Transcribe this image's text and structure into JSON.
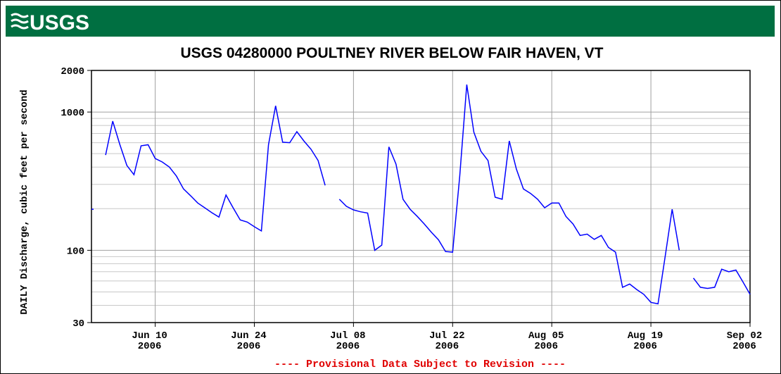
{
  "header": {
    "logo": "USGS"
  },
  "chart_data": {
    "type": "line",
    "title": "USGS 04280000 POULTNEY RIVER BELOW FAIR HAVEN, VT",
    "y_label": "DAILY Discharge, cubic feet per second",
    "footnote": "---- Provisional Data Subject to Revision ----",
    "log_y": true,
    "grid": true,
    "xlim": [
      "2006-06-01",
      "2006-09-02"
    ],
    "ylim": [
      30,
      2000
    ],
    "yticks": [
      30,
      100,
      1000,
      2000
    ],
    "yminor": [
      40,
      50,
      60,
      70,
      80,
      90,
      200,
      300,
      400,
      500,
      600,
      700,
      800,
      900
    ],
    "xticks": [
      {
        "value": "2006-06-10",
        "label": [
          "Jun 10",
          "2006"
        ]
      },
      {
        "value": "2006-06-24",
        "label": [
          "Jun 24",
          "2006"
        ]
      },
      {
        "value": "2006-07-08",
        "label": [
          "Jul 08",
          "2006"
        ]
      },
      {
        "value": "2006-07-22",
        "label": [
          "Jul 22",
          "2006"
        ]
      },
      {
        "value": "2006-08-05",
        "label": [
          "Aug 05",
          "2006"
        ]
      },
      {
        "value": "2006-08-19",
        "label": [
          "Aug 19",
          "2006"
        ]
      },
      {
        "value": "2006-09-02",
        "label": [
          "Sep 02",
          "2006"
        ]
      }
    ],
    "x": [
      "2006-06-01",
      "2006-06-02",
      "2006-06-03",
      "2006-06-04",
      "2006-06-05",
      "2006-06-06",
      "2006-06-07",
      "2006-06-08",
      "2006-06-09",
      "2006-06-10",
      "2006-06-11",
      "2006-06-12",
      "2006-06-13",
      "2006-06-14",
      "2006-06-15",
      "2006-06-16",
      "2006-06-17",
      "2006-06-18",
      "2006-06-19",
      "2006-06-20",
      "2006-06-21",
      "2006-06-22",
      "2006-06-23",
      "2006-06-24",
      "2006-06-25",
      "2006-06-26",
      "2006-06-27",
      "2006-06-28",
      "2006-06-29",
      "2006-06-30",
      "2006-07-01",
      "2006-07-02",
      "2006-07-03",
      "2006-07-04",
      "2006-07-05",
      "2006-07-06",
      "2006-07-07",
      "2006-07-08",
      "2006-07-09",
      "2006-07-10",
      "2006-07-11",
      "2006-07-12",
      "2006-07-13",
      "2006-07-14",
      "2006-07-15",
      "2006-07-16",
      "2006-07-17",
      "2006-07-18",
      "2006-07-19",
      "2006-07-20",
      "2006-07-21",
      "2006-07-22",
      "2006-07-23",
      "2006-07-24",
      "2006-07-25",
      "2006-07-26",
      "2006-07-27",
      "2006-07-28",
      "2006-07-29",
      "2006-07-30",
      "2006-07-31",
      "2006-08-01",
      "2006-08-02",
      "2006-08-03",
      "2006-08-04",
      "2006-08-05",
      "2006-08-06",
      "2006-08-07",
      "2006-08-08",
      "2006-08-09",
      "2006-08-10",
      "2006-08-11",
      "2006-08-12",
      "2006-08-13",
      "2006-08-14",
      "2006-08-15",
      "2006-08-16",
      "2006-08-17",
      "2006-08-18",
      "2006-08-19",
      "2006-08-20",
      "2006-08-21",
      "2006-08-22",
      "2006-08-23",
      "2006-08-24",
      "2006-08-25",
      "2006-08-26",
      "2006-08-27",
      "2006-08-28",
      "2006-08-29",
      "2006-08-30",
      "2006-08-31",
      "2006-09-01",
      "2006-09-02"
    ],
    "series": [
      {
        "color": "#0000ff",
        "values": [
          198,
          null,
          489,
          859,
          583,
          411,
          352,
          570,
          580,
          461,
          435,
          400,
          344,
          278,
          248,
          220,
          203,
          187,
          174,
          251,
          203,
          166,
          160,
          148,
          138,
          580,
          1110,
          605,
          600,
          722,
          618,
          538,
          446,
          295,
          null,
          234,
          208,
          196,
          190,
          186,
          100,
          109,
          560,
          420,
          234,
          198,
          176,
          155,
          135,
          119,
          98,
          97,
          344,
          1580,
          714,
          520,
          446,
          242,
          234,
          618,
          387,
          278,
          258,
          234,
          203,
          220,
          220,
          176,
          155,
          128,
          131,
          120,
          128,
          105,
          97,
          54,
          57,
          52,
          48,
          42,
          41,
          89,
          198,
          100,
          null,
          63,
          54,
          53,
          54,
          73,
          70,
          72,
          59,
          48
        ]
      }
    ]
  }
}
